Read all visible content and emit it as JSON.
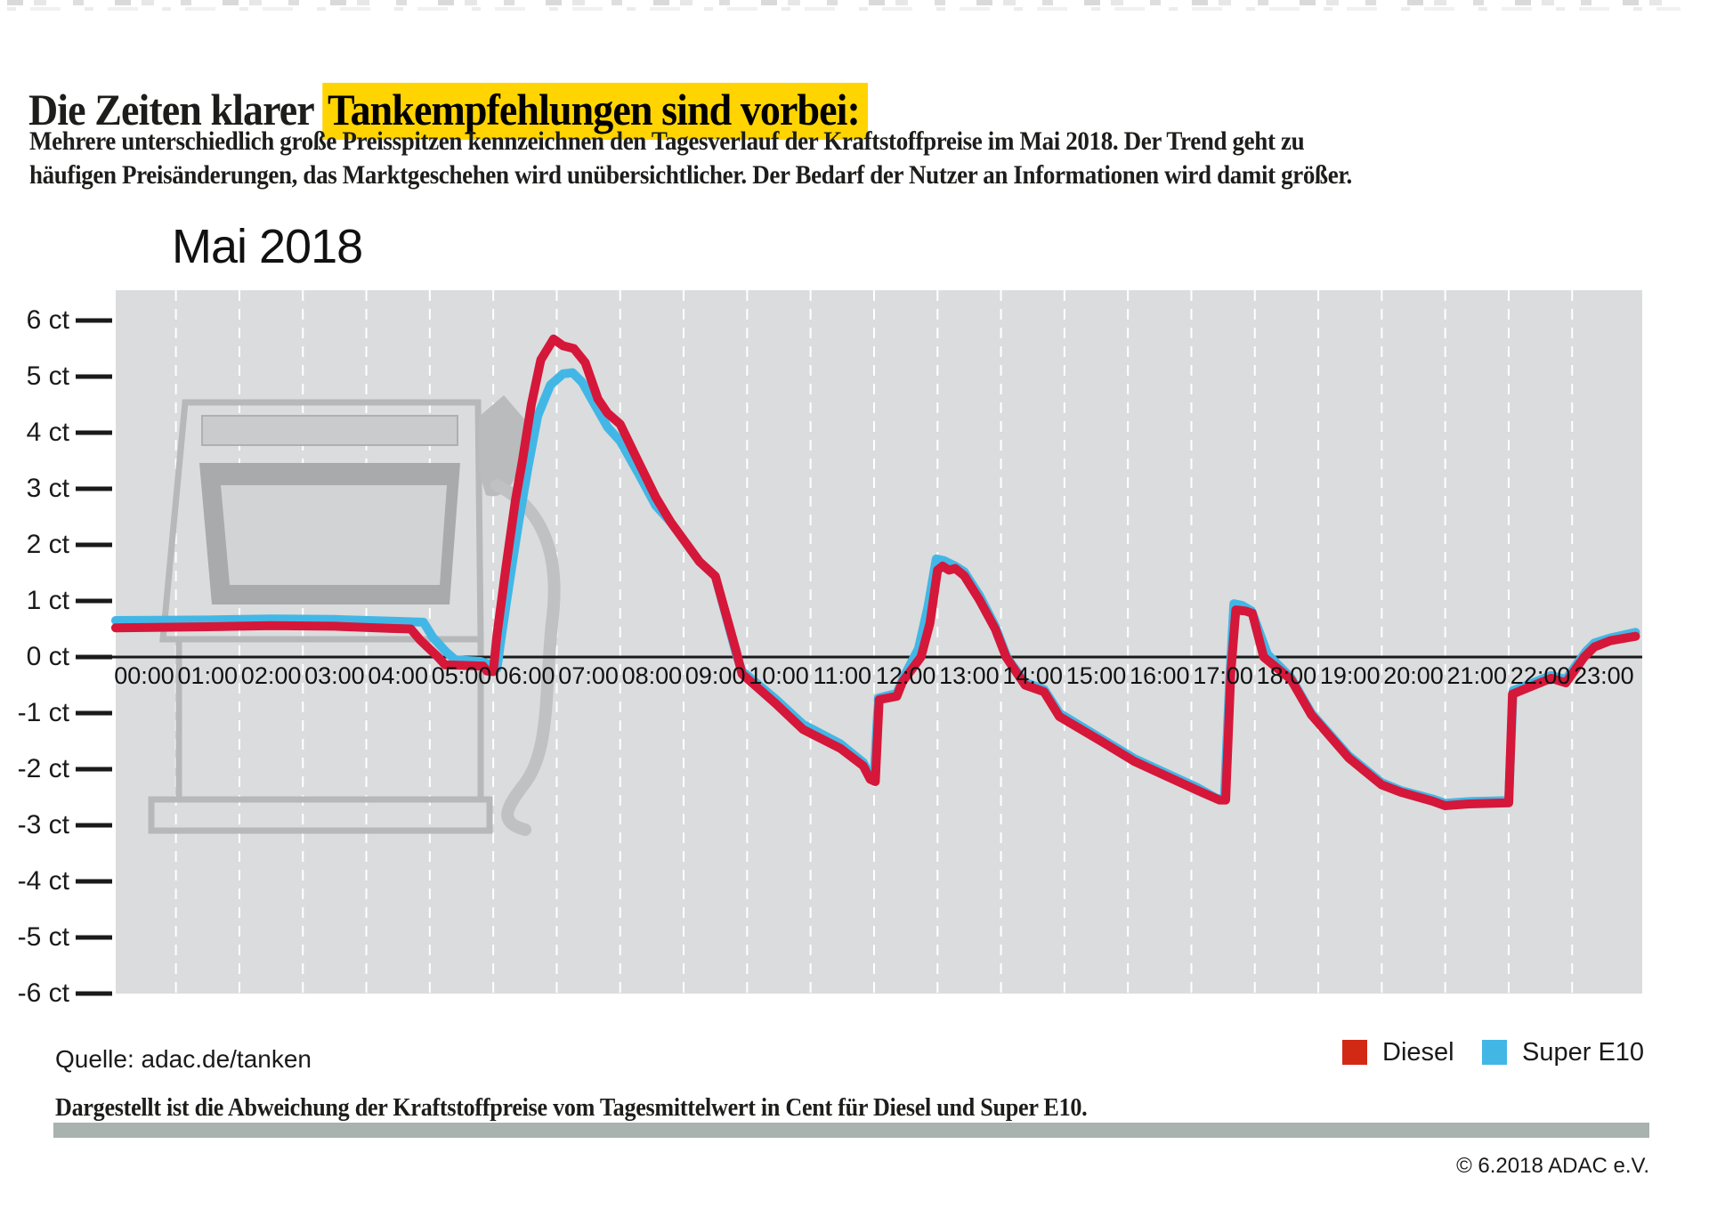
{
  "header": {
    "title_plain": "Die Zeiten klarer ",
    "title_highlight": "Tankempfehlungen sind vorbei:",
    "highlight_color": "#ffd400",
    "subtitle_line1": "Mehrere unterschiedlich große Preisspitzen kennzeichnen den Tagesverlauf der Kraftstoffpreise im Mai 2018. Der Trend geht zu",
    "subtitle_line2": "häufigen Preisänderungen, das Marktgeschehen wird unübersichtlicher. Der Bedarf der Nutzer an Informationen wird damit größer."
  },
  "chart_data": {
    "type": "line",
    "title": "Mai 2018",
    "xlabel": "",
    "ylabel": "ct",
    "plot_bg": "#dbdcdd",
    "grid": "dashed-white-vertical",
    "ylim": [
      -6.6,
      6.7
    ],
    "y_tick_values": [
      6,
      5,
      4,
      3,
      2,
      1,
      0,
      -1,
      -2,
      -3,
      -4,
      -5,
      -6
    ],
    "y_tick_labels": [
      "6 ct",
      "5 ct",
      "4 ct",
      "3 ct",
      "2 ct",
      "1 ct",
      "0 ct",
      "-1 ct",
      "-2 ct",
      "-3 ct",
      "-4 ct",
      "-5 ct",
      "-6 ct"
    ],
    "x_labels": [
      "00:00",
      "01:00",
      "02:00",
      "03:00",
      "04:00",
      "05:00",
      "06:00",
      "07:00",
      "08:00",
      "09:00",
      "10:00",
      "11:00",
      "12:00",
      "13:00",
      "14:00",
      "15:00",
      "16:00",
      "17:00",
      "18:00",
      "19:00",
      "20:00",
      "21:00",
      "22:00",
      "23:00"
    ],
    "legend_position": "bottom-right",
    "series": [
      {
        "name": "Super E10",
        "color": "#42b7e6",
        "points": [
          [
            -0.45,
            0.65
          ],
          [
            1,
            0.66
          ],
          [
            2,
            0.68
          ],
          [
            3,
            0.67
          ],
          [
            3.9,
            0.64
          ],
          [
            4.4,
            0.62
          ],
          [
            4.55,
            0.35
          ],
          [
            4.75,
            0.1
          ],
          [
            4.9,
            -0.05
          ],
          [
            5.3,
            -0.08
          ],
          [
            5.42,
            -0.12
          ],
          [
            5.5,
            -0.22
          ],
          [
            5.56,
            -0.2
          ],
          [
            5.62,
            0.3
          ],
          [
            5.75,
            1.3
          ],
          [
            5.9,
            2.4
          ],
          [
            6.05,
            3.4
          ],
          [
            6.2,
            4.3
          ],
          [
            6.4,
            4.85
          ],
          [
            6.6,
            5.05
          ],
          [
            6.75,
            5.07
          ],
          [
            6.9,
            4.9
          ],
          [
            7.1,
            4.5
          ],
          [
            7.3,
            4.1
          ],
          [
            7.5,
            3.85
          ],
          [
            7.8,
            3.25
          ],
          [
            8.06,
            2.7
          ],
          [
            8.3,
            2.4
          ],
          [
            8.75,
            1.7
          ],
          [
            9.0,
            1.44
          ],
          [
            9.33,
            0.05
          ],
          [
            9.42,
            -0.25
          ],
          [
            9.96,
            -0.76
          ],
          [
            10.38,
            -1.2
          ],
          [
            10.97,
            -1.55
          ],
          [
            11.33,
            -1.88
          ],
          [
            11.44,
            -2.12
          ],
          [
            11.5,
            -2.16
          ],
          [
            11.57,
            -0.73
          ],
          [
            11.86,
            -0.65
          ],
          [
            11.95,
            -0.4
          ],
          [
            12.2,
            0.15
          ],
          [
            12.35,
            0.9
          ],
          [
            12.48,
            1.75
          ],
          [
            12.6,
            1.72
          ],
          [
            12.78,
            1.62
          ],
          [
            12.92,
            1.52
          ],
          [
            13.16,
            1.1
          ],
          [
            13.41,
            0.55
          ],
          [
            13.6,
            -0.02
          ],
          [
            13.88,
            -0.45
          ],
          [
            14.18,
            -0.58
          ],
          [
            14.42,
            -1.0
          ],
          [
            15.09,
            -1.46
          ],
          [
            15.6,
            -1.81
          ],
          [
            16.1,
            -2.07
          ],
          [
            16.6,
            -2.33
          ],
          [
            16.9,
            -2.52
          ],
          [
            17.02,
            -2.54
          ],
          [
            17.1,
            -0.5
          ],
          [
            17.17,
            0.95
          ],
          [
            17.3,
            0.92
          ],
          [
            17.45,
            0.82
          ],
          [
            17.7,
            0.05
          ],
          [
            18.07,
            -0.37
          ],
          [
            18.39,
            -1.0
          ],
          [
            18.98,
            -1.76
          ],
          [
            19.5,
            -2.24
          ],
          [
            19.8,
            -2.38
          ],
          [
            20.3,
            -2.53
          ],
          [
            20.5,
            -2.61
          ],
          [
            20.85,
            -2.58
          ],
          [
            21.5,
            -2.56
          ],
          [
            21.57,
            -0.6
          ],
          [
            22.17,
            -0.33
          ],
          [
            22.4,
            -0.4
          ],
          [
            22.72,
            0.1
          ],
          [
            22.85,
            0.25
          ],
          [
            23.1,
            0.34
          ],
          [
            23.5,
            0.44
          ]
        ]
      },
      {
        "name": "Diesel",
        "color": "#d5173a",
        "points": [
          [
            -0.45,
            0.52
          ],
          [
            1,
            0.54
          ],
          [
            2,
            0.56
          ],
          [
            3,
            0.55
          ],
          [
            3.9,
            0.51
          ],
          [
            4.2,
            0.5
          ],
          [
            4.35,
            0.3
          ],
          [
            4.63,
            0.0
          ],
          [
            4.74,
            -0.14
          ],
          [
            5.34,
            -0.16
          ],
          [
            5.4,
            -0.25
          ],
          [
            5.5,
            -0.26
          ],
          [
            5.56,
            0.4
          ],
          [
            5.7,
            1.6
          ],
          [
            5.85,
            2.8
          ],
          [
            5.96,
            3.5
          ],
          [
            6.1,
            4.5
          ],
          [
            6.25,
            5.3
          ],
          [
            6.45,
            5.67
          ],
          [
            6.6,
            5.55
          ],
          [
            6.77,
            5.5
          ],
          [
            6.95,
            5.25
          ],
          [
            7.15,
            4.6
          ],
          [
            7.3,
            4.35
          ],
          [
            7.5,
            4.15
          ],
          [
            7.8,
            3.45
          ],
          [
            8.06,
            2.85
          ],
          [
            8.3,
            2.4
          ],
          [
            8.75,
            1.7
          ],
          [
            9.0,
            1.44
          ],
          [
            9.33,
            0.1
          ],
          [
            9.42,
            -0.3
          ],
          [
            9.96,
            -0.84
          ],
          [
            10.38,
            -1.29
          ],
          [
            10.97,
            -1.63
          ],
          [
            11.33,
            -1.94
          ],
          [
            11.44,
            -2.18
          ],
          [
            11.52,
            -2.22
          ],
          [
            11.58,
            -0.76
          ],
          [
            11.86,
            -0.7
          ],
          [
            11.95,
            -0.44
          ],
          [
            12.24,
            0.0
          ],
          [
            12.38,
            0.6
          ],
          [
            12.5,
            1.55
          ],
          [
            12.58,
            1.62
          ],
          [
            12.68,
            1.55
          ],
          [
            12.78,
            1.58
          ],
          [
            12.92,
            1.45
          ],
          [
            13.16,
            1.02
          ],
          [
            13.41,
            0.5
          ],
          [
            13.58,
            0.0
          ],
          [
            13.88,
            -0.5
          ],
          [
            14.18,
            -0.62
          ],
          [
            14.42,
            -1.06
          ],
          [
            15.09,
            -1.51
          ],
          [
            15.6,
            -1.86
          ],
          [
            16.1,
            -2.12
          ],
          [
            16.6,
            -2.38
          ],
          [
            16.94,
            -2.55
          ],
          [
            17.04,
            -2.55
          ],
          [
            17.12,
            -0.3
          ],
          [
            17.2,
            0.84
          ],
          [
            17.35,
            0.82
          ],
          [
            17.46,
            0.78
          ],
          [
            17.64,
            0.0
          ],
          [
            18.07,
            -0.4
          ],
          [
            18.39,
            -1.03
          ],
          [
            18.98,
            -1.8
          ],
          [
            19.5,
            -2.28
          ],
          [
            19.8,
            -2.41
          ],
          [
            20.3,
            -2.57
          ],
          [
            20.5,
            -2.65
          ],
          [
            20.85,
            -2.62
          ],
          [
            21.5,
            -2.6
          ],
          [
            21.56,
            -0.66
          ],
          [
            22.17,
            -0.38
          ],
          [
            22.4,
            -0.46
          ],
          [
            22.69,
            0.0
          ],
          [
            22.85,
            0.18
          ],
          [
            23.1,
            0.29
          ],
          [
            23.5,
            0.37
          ]
        ]
      }
    ],
    "legend": [
      {
        "label": "Diesel",
        "color": "#d22914"
      },
      {
        "label": "Super E10",
        "color": "#42b7e6"
      }
    ]
  },
  "footer": {
    "source": "Quelle: adac.de/tanken",
    "caption": "Dargestellt ist die Abweichung der Kraftstoffpreise vom Tagesmittelwert in Cent für Diesel und Super E10.",
    "copyright": "© 6.2018 ADAC e.V."
  }
}
